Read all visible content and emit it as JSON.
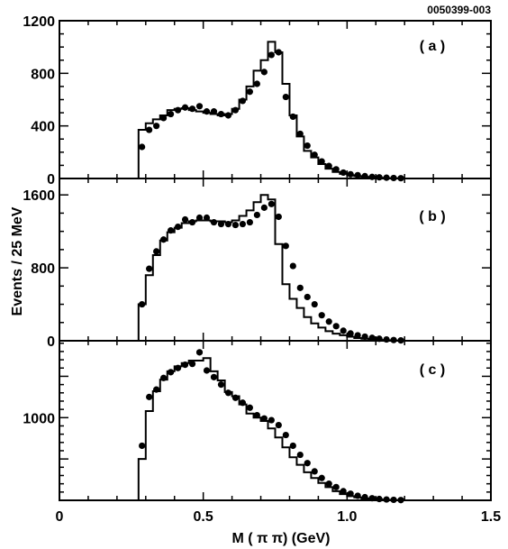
{
  "figure_id": "0050399-003",
  "x_axis_title": "M ( π π) (GeV)",
  "y_axis_title": "Events / 25 MeV",
  "x_tick_labels": [
    "0",
    "0.5",
    "1.0",
    "1.5"
  ],
  "chart_data": [
    {
      "type": "line",
      "panel_label": "( a )",
      "xlim": [
        0,
        1.5
      ],
      "ylim": [
        0,
        1200
      ],
      "y_tick_labels": [
        "0",
        "400",
        "800",
        "1200"
      ],
      "y_tick_values": [
        0,
        400,
        800,
        1200
      ],
      "series": [
        {
          "kind": "histogram",
          "edges": [
            0.0,
            0.275,
            0.3,
            0.325,
            0.35,
            0.375,
            0.4,
            0.425,
            0.45,
            0.475,
            0.5,
            0.525,
            0.55,
            0.575,
            0.6,
            0.625,
            0.65,
            0.675,
            0.7,
            0.725,
            0.75,
            0.775,
            0.8,
            0.825,
            0.85,
            0.875,
            0.9,
            0.925,
            0.95,
            0.975,
            1.0,
            1.025,
            1.05,
            1.075,
            1.1,
            1.125,
            1.15,
            1.175,
            1.2,
            1.5
          ],
          "values": [
            0,
            370,
            420,
            450,
            480,
            520,
            530,
            535,
            520,
            510,
            500,
            490,
            480,
            490,
            530,
            600,
            700,
            820,
            900,
            1040,
            960,
            720,
            480,
            320,
            210,
            160,
            110,
            75,
            50,
            35,
            25,
            18,
            12,
            8,
            5,
            3,
            2,
            1,
            0
          ]
        },
        {
          "kind": "points",
          "x": [
            0.287,
            0.312,
            0.337,
            0.362,
            0.387,
            0.412,
            0.437,
            0.462,
            0.487,
            0.512,
            0.537,
            0.562,
            0.587,
            0.612,
            0.637,
            0.662,
            0.687,
            0.712,
            0.737,
            0.762,
            0.787,
            0.812,
            0.837,
            0.862,
            0.887,
            0.912,
            0.937,
            0.962,
            0.987,
            1.012,
            1.037,
            1.062,
            1.087,
            1.112,
            1.137,
            1.162,
            1.187
          ],
          "y": [
            240,
            370,
            400,
            460,
            490,
            520,
            540,
            530,
            550,
            510,
            510,
            490,
            480,
            520,
            590,
            660,
            720,
            810,
            940,
            960,
            620,
            470,
            340,
            250,
            180,
            130,
            95,
            70,
            45,
            32,
            25,
            18,
            12,
            9,
            6,
            4,
            2
          ]
        }
      ]
    },
    {
      "type": "line",
      "panel_label": "( b )",
      "xlim": [
        0,
        1.5
      ],
      "ylim": [
        0,
        1780
      ],
      "y_tick_labels": [
        "0",
        "800",
        "1600"
      ],
      "y_tick_values": [
        0,
        800,
        1600
      ],
      "series": [
        {
          "kind": "histogram",
          "edges": [
            0.0,
            0.275,
            0.3,
            0.325,
            0.35,
            0.375,
            0.4,
            0.425,
            0.45,
            0.475,
            0.5,
            0.525,
            0.55,
            0.575,
            0.6,
            0.625,
            0.65,
            0.675,
            0.7,
            0.725,
            0.75,
            0.775,
            0.8,
            0.825,
            0.85,
            0.875,
            0.9,
            0.925,
            0.95,
            0.975,
            1.0,
            1.025,
            1.05,
            1.075,
            1.1,
            1.125,
            1.15,
            1.175,
            1.2,
            1.5
          ],
          "values": [
            0,
            400,
            720,
            940,
            1100,
            1190,
            1240,
            1290,
            1310,
            1320,
            1320,
            1310,
            1310,
            1300,
            1320,
            1370,
            1430,
            1520,
            1600,
            1550,
            1060,
            620,
            460,
            360,
            260,
            190,
            145,
            105,
            78,
            60,
            45,
            30,
            22,
            14,
            9,
            5,
            3,
            1,
            0
          ]
        },
        {
          "kind": "points",
          "x": [
            0.287,
            0.312,
            0.337,
            0.362,
            0.387,
            0.412,
            0.437,
            0.462,
            0.487,
            0.512,
            0.537,
            0.562,
            0.587,
            0.612,
            0.637,
            0.662,
            0.687,
            0.712,
            0.737,
            0.762,
            0.787,
            0.812,
            0.837,
            0.862,
            0.887,
            0.912,
            0.937,
            0.962,
            0.987,
            1.012,
            1.037,
            1.062,
            1.087,
            1.112,
            1.137,
            1.162,
            1.187
          ],
          "y": [
            400,
            790,
            980,
            1110,
            1210,
            1250,
            1330,
            1300,
            1350,
            1350,
            1300,
            1280,
            1280,
            1270,
            1280,
            1300,
            1380,
            1460,
            1500,
            1360,
            1040,
            820,
            580,
            480,
            400,
            280,
            210,
            160,
            110,
            80,
            60,
            45,
            32,
            22,
            14,
            8,
            4
          ]
        }
      ]
    },
    {
      "type": "line",
      "panel_label": "( c )",
      "xlim": [
        0,
        1.5
      ],
      "ylim": [
        0,
        1930
      ],
      "y_tick_labels": [
        "1000"
      ],
      "y_tick_values": [
        1000
      ],
      "series": [
        {
          "kind": "histogram",
          "edges": [
            0.0,
            0.275,
            0.3,
            0.325,
            0.35,
            0.375,
            0.4,
            0.425,
            0.45,
            0.475,
            0.5,
            0.525,
            0.55,
            0.575,
            0.6,
            0.625,
            0.65,
            0.675,
            0.7,
            0.725,
            0.75,
            0.775,
            0.8,
            0.825,
            0.85,
            0.875,
            0.9,
            0.925,
            0.95,
            0.975,
            1.0,
            1.025,
            1.05,
            1.075,
            1.1,
            1.125,
            1.15,
            1.175,
            1.2,
            1.5
          ],
          "values": [
            0,
            500,
            1080,
            1320,
            1460,
            1560,
            1620,
            1660,
            1690,
            1690,
            1720,
            1560,
            1450,
            1310,
            1260,
            1160,
            1050,
            1000,
            960,
            870,
            760,
            640,
            520,
            430,
            340,
            270,
            210,
            160,
            110,
            75,
            50,
            35,
            22,
            14,
            9,
            5,
            3,
            1,
            0
          ]
        },
        {
          "kind": "points",
          "x": [
            0.287,
            0.312,
            0.337,
            0.362,
            0.387,
            0.412,
            0.437,
            0.462,
            0.487,
            0.512,
            0.537,
            0.562,
            0.587,
            0.612,
            0.637,
            0.662,
            0.687,
            0.712,
            0.737,
            0.762,
            0.787,
            0.812,
            0.837,
            0.862,
            0.887,
            0.912,
            0.937,
            0.962,
            0.987,
            1.012,
            1.037,
            1.062,
            1.087,
            1.112,
            1.137,
            1.162,
            1.187
          ],
          "y": [
            660,
            1250,
            1340,
            1480,
            1550,
            1600,
            1640,
            1650,
            1790,
            1570,
            1490,
            1400,
            1300,
            1240,
            1180,
            1120,
            1030,
            990,
            970,
            910,
            790,
            660,
            550,
            450,
            350,
            270,
            200,
            160,
            110,
            80,
            55,
            38,
            25,
            16,
            10,
            6,
            3
          ]
        }
      ]
    }
  ]
}
